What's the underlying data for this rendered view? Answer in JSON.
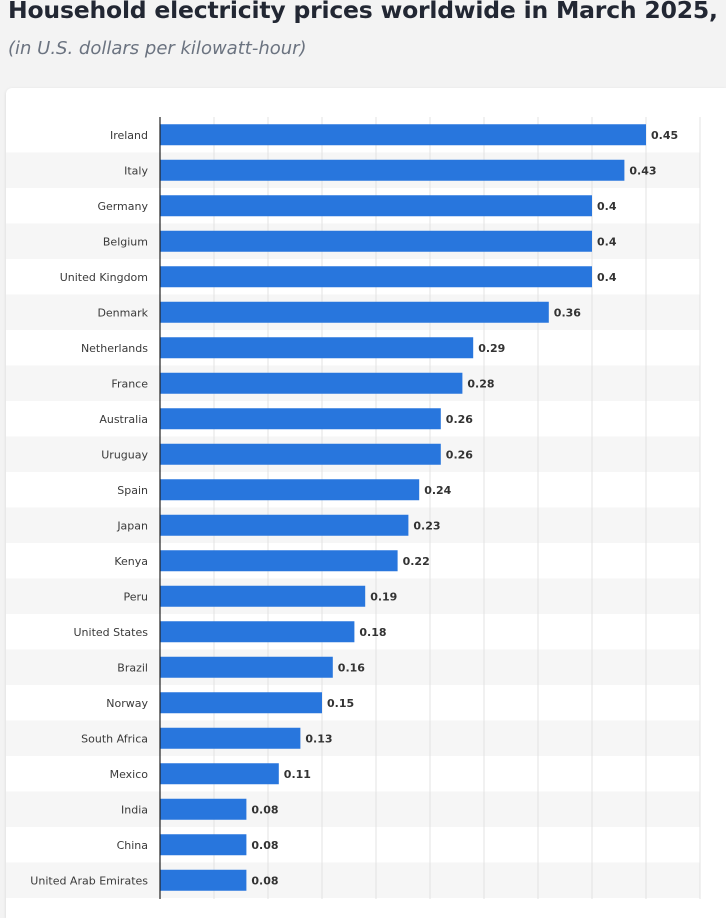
{
  "header": {
    "title": "Household electricity prices worldwide in March 2025,",
    "subtitle": "(in U.S. dollars per kilowatt-hour)"
  },
  "colors": {
    "bar": "#2876dd",
    "stripe": "#f6f6f6",
    "grid": "#e3e3e3",
    "axis": "#222222"
  },
  "chart_data": {
    "type": "bar",
    "orientation": "horizontal",
    "categories": [
      "Ireland",
      "Italy",
      "Germany",
      "Belgium",
      "United Kingdom",
      "Denmark",
      "Netherlands",
      "France",
      "Australia",
      "Uruguay",
      "Spain",
      "Japan",
      "Kenya",
      "Peru",
      "United States",
      "Brazil",
      "Norway",
      "South Africa",
      "Mexico",
      "India",
      "China",
      "United Arab Emirates"
    ],
    "values": [
      0.45,
      0.43,
      0.4,
      0.4,
      0.4,
      0.36,
      0.29,
      0.28,
      0.26,
      0.26,
      0.24,
      0.23,
      0.22,
      0.19,
      0.18,
      0.16,
      0.15,
      0.13,
      0.11,
      0.08,
      0.08,
      0.08
    ],
    "value_labels": [
      "0.45",
      "0.43",
      "0.4",
      "0.4",
      "0.4",
      "0.36",
      "0.29",
      "0.28",
      "0.26",
      "0.26",
      "0.24",
      "0.23",
      "0.22",
      "0.19",
      "0.18",
      "0.16",
      "0.15",
      "0.13",
      "0.11",
      "0.08",
      "0.08",
      "0.08"
    ],
    "xlim": [
      0,
      0.5
    ],
    "grid": true,
    "data_labels": true,
    "legend": "none"
  }
}
